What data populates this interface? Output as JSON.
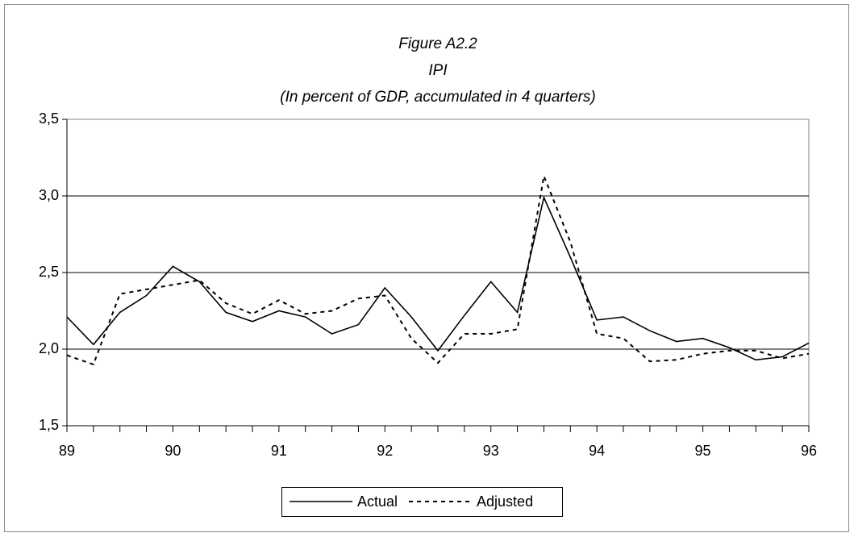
{
  "chart_data": {
    "type": "line",
    "title": [
      "Figure  A2.2",
      "IPI",
      "(In percent of GDP, accumulated in 4 quarters)"
    ],
    "x": [
      89,
      89.25,
      89.5,
      89.75,
      90,
      90.25,
      90.5,
      90.75,
      91,
      91.25,
      91.5,
      91.75,
      92,
      92.25,
      92.5,
      92.75,
      93,
      93.25,
      93.5,
      93.75,
      94,
      94.25,
      94.5,
      94.75,
      95,
      95.25,
      95.5,
      95.75,
      96
    ],
    "series": [
      {
        "name": "Actual",
        "color": "#000000",
        "dash": "solid",
        "values": [
          2.21,
          2.03,
          2.24,
          2.35,
          2.54,
          2.44,
          2.24,
          2.18,
          2.25,
          2.21,
          2.1,
          2.16,
          2.4,
          2.21,
          1.99,
          2.22,
          2.44,
          2.24,
          2.99,
          2.6,
          2.19,
          2.21,
          2.12,
          2.05,
          2.07,
          2.01,
          1.93,
          1.95,
          2.04
        ]
      },
      {
        "name": "Adjusted",
        "color": "#000000",
        "dash": "dotted",
        "values": [
          1.96,
          1.9,
          2.36,
          2.39,
          2.42,
          2.45,
          2.3,
          2.23,
          2.32,
          2.23,
          2.25,
          2.33,
          2.35,
          2.07,
          1.91,
          2.1,
          2.1,
          2.13,
          3.13,
          2.7,
          2.1,
          2.07,
          1.92,
          1.93,
          1.97,
          1.99,
          1.99,
          1.94,
          1.97
        ]
      }
    ],
    "xlim": [
      89,
      96
    ],
    "xticks": [
      89,
      90,
      91,
      92,
      93,
      94,
      95,
      96
    ],
    "ylim": [
      1.5,
      3.5
    ],
    "yticks": [
      {
        "value": 1.5,
        "label": "1,5"
      },
      {
        "value": 2.0,
        "label": "2,0"
      },
      {
        "value": 2.5,
        "label": "2,5"
      },
      {
        "value": 3.0,
        "label": "3,0"
      },
      {
        "value": 3.5,
        "label": "3,5"
      }
    ],
    "grid": true,
    "legend": "bottom"
  }
}
